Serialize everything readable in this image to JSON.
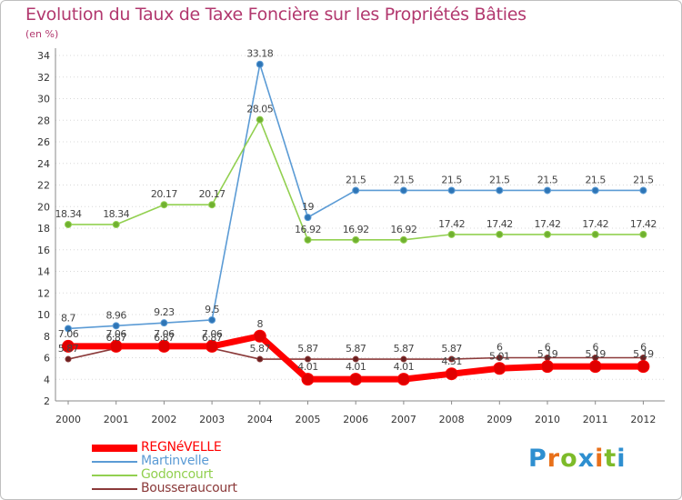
{
  "title": "Evolution du Taux de Taxe Foncière sur les Propriétés Bâties",
  "unit_label": "(en %)",
  "brand": {
    "letters": [
      "P",
      "r",
      "o",
      "x",
      "i",
      "t",
      "i"
    ],
    "colors": [
      "#2e8fd0",
      "#e8701a",
      "#7dbb2a",
      "#2e8fd0",
      "#e8701a",
      "#7dbb2a",
      "#2e8fd0"
    ]
  },
  "chart_data": {
    "type": "line",
    "title": "Evolution du Taux de Taxe Foncière sur les Propriétés Bâties",
    "ylabel": "(en %)",
    "xlabel": "",
    "x": [
      "2000",
      "2001",
      "2002",
      "2003",
      "2004",
      "2005",
      "2006",
      "2007",
      "2008",
      "2009",
      "2010",
      "2011",
      "2012"
    ],
    "ylim": [
      2,
      34
    ],
    "yticks": [
      "2",
      "4",
      "6",
      "8",
      "10",
      "12",
      "14",
      "16",
      "18",
      "20",
      "22",
      "24",
      "26",
      "28",
      "30",
      "32",
      "34"
    ],
    "grid": "horizontal dotted",
    "series": [
      {
        "name": "Martinvelle",
        "color": "#5b9bd5",
        "marker": "#2e75b6",
        "values": [
          8.7,
          8.96,
          9.23,
          9.5,
          33.18,
          19,
          21.5,
          21.5,
          21.5,
          21.5,
          21.5,
          21.5,
          21.5
        ],
        "labels": [
          "8.7",
          "8.96",
          "9.23",
          "9.5",
          "33.18",
          "19",
          "21.5",
          "21.5",
          "21.5",
          "21.5",
          "21.5",
          "21.5",
          "21.5"
        ]
      },
      {
        "name": "Godoncourt",
        "color": "#92d050",
        "marker": "#70b030",
        "values": [
          18.34,
          18.34,
          20.17,
          20.17,
          28.05,
          16.92,
          16.92,
          16.92,
          17.42,
          17.42,
          17.42,
          17.42,
          17.42
        ],
        "labels": [
          "18.34",
          "18.34",
          "20.17",
          "20.17",
          "28.05",
          "16.92",
          "16.92",
          "16.92",
          "17.42",
          "17.42",
          "17.42",
          "17.42",
          "17.42"
        ]
      },
      {
        "name": "Bousseraucourt",
        "color": "#8b3a3a",
        "marker": "#6b1f1f",
        "values": [
          5.87,
          6.87,
          6.87,
          6.87,
          5.87,
          5.87,
          5.87,
          5.87,
          5.87,
          6,
          6,
          6,
          6
        ],
        "labels": [
          "5.87",
          "6.87",
          "6.87",
          "6.87",
          "5.87",
          "5.87",
          "5.87",
          "5.87",
          "5.87",
          "6",
          "6",
          "6",
          "6"
        ]
      },
      {
        "name": "REGNéVELLE",
        "color": "#ff0000",
        "marker": "#e00000",
        "values": [
          7.06,
          7.06,
          7.06,
          7.06,
          8,
          4.01,
          4.01,
          4.01,
          4.51,
          5.01,
          5.19,
          5.19,
          5.19
        ],
        "labels": [
          "7.06",
          "7.06",
          "7.06",
          "7.06",
          "8",
          "4.01",
          "4.01",
          "4.01",
          "4.51",
          "5.01",
          "5.19",
          "5.19",
          "5.19"
        ]
      }
    ]
  },
  "legend": [
    {
      "label": "REGNéVELLE",
      "color": "#ff0000",
      "thickness": 8
    },
    {
      "label": "Martinvelle",
      "color": "#5b9bd5",
      "thickness": 2
    },
    {
      "label": "Godoncourt",
      "color": "#92d050",
      "thickness": 2
    },
    {
      "label": "Bousseraucourt",
      "color": "#8b3a3a",
      "thickness": 2
    }
  ]
}
